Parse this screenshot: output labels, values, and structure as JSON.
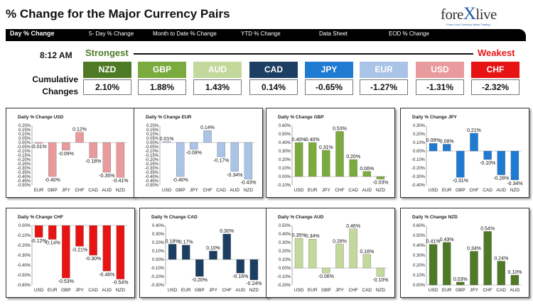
{
  "header": {
    "title": "% Change for the Major Currency Pairs",
    "logo": {
      "text_a": "fore",
      "text_x": "X",
      "text_b": "live",
      "tagline": "Forex Live Currency News Trading"
    }
  },
  "tabs": [
    {
      "label": "Day % Change",
      "active": true
    },
    {
      "label": "5- Day % Change",
      "active": false
    },
    {
      "label": "Month to Date % Change",
      "active": false
    },
    {
      "label": "YTD % Change",
      "active": false
    },
    {
      "label": "Data Sheet",
      "active": false
    },
    {
      "label": "EOD % Change",
      "active": false
    }
  ],
  "summary": {
    "time": "8:12 AM",
    "strongest_label": "Strongest",
    "weakest_label": "Weakest",
    "cumulative_label_1": "Cumulative",
    "cumulative_label_2": "Changes",
    "currencies": [
      {
        "name": "NZD",
        "value": "2.10%",
        "color": "#4e7a26"
      },
      {
        "name": "GBP",
        "value": "1.88%",
        "color": "#7bab3e"
      },
      {
        "name": "AUD",
        "value": "1.43%",
        "color": "#c3d89b"
      },
      {
        "name": "CAD",
        "value": "0.14%",
        "color": "#1d3e63"
      },
      {
        "name": "JPY",
        "value": "-0.65%",
        "color": "#1f7ad1"
      },
      {
        "name": "EUR",
        "value": "-1.27%",
        "color": "#a9c4e6"
      },
      {
        "name": "USD",
        "value": "-1.31%",
        "color": "#e89a9c"
      },
      {
        "name": "CHF",
        "value": "-2.32%",
        "color": "#e81313"
      }
    ]
  },
  "chart_data": [
    {
      "type": "bar",
      "title": "Daily % Change USD",
      "color": "#e89a9c",
      "categories": [
        "EUR",
        "GBP",
        "JPY",
        "CHF",
        "CAD",
        "AUD",
        "NZD"
      ],
      "values": [
        -0.01,
        -0.4,
        -0.09,
        0.12,
        -0.18,
        -0.35,
        -0.41
      ],
      "value_labels": [
        "-0.01%",
        "-0.40%",
        "-0.09%",
        "0.12%",
        "-0.18%",
        "-0.35%",
        "-0.41%"
      ],
      "ylim": [
        -0.5,
        0.2
      ],
      "yticks": [
        "0.20%",
        "0.15%",
        "0.10%",
        "0.05%",
        "0.00%",
        "-0.05%",
        "-0.10%",
        "-0.15%",
        "-0.20%",
        "-0.25%",
        "-0.30%",
        "-0.35%",
        "-0.40%",
        "-0.45%",
        "-0.50%"
      ],
      "ytick_values": [
        0.2,
        0.15,
        0.1,
        0.05,
        0,
        -0.05,
        -0.1,
        -0.15,
        -0.2,
        -0.25,
        -0.3,
        -0.35,
        -0.4,
        -0.45,
        -0.5
      ]
    },
    {
      "type": "bar",
      "title": "Daily % Change EUR",
      "color": "#a9c4e6",
      "categories": [
        "USD",
        "GBP",
        "JPY",
        "CHF",
        "CAD",
        "AUD",
        "NZD"
      ],
      "values": [
        0.01,
        -0.4,
        -0.08,
        0.14,
        -0.17,
        -0.34,
        -0.43
      ],
      "value_labels": [
        "0.01%",
        "-0.40%",
        "-0.08%",
        "0.14%",
        "-0.17%",
        "-0.34%",
        "-0.43%"
      ],
      "ylim": [
        -0.5,
        0.2
      ],
      "yticks": [
        "0.20%",
        "0.15%",
        "0.10%",
        "0.05%",
        "0.00%",
        "-0.05%",
        "-0.10%",
        "-0.15%",
        "-0.20%",
        "-0.25%",
        "-0.30%",
        "-0.35%",
        "-0.40%",
        "-0.45%",
        "-0.50%"
      ],
      "ytick_values": [
        0.2,
        0.15,
        0.1,
        0.05,
        0,
        -0.05,
        -0.1,
        -0.15,
        -0.2,
        -0.25,
        -0.3,
        -0.35,
        -0.4,
        -0.45,
        -0.5
      ]
    },
    {
      "type": "bar",
      "title": "Daily % Change GBP",
      "color": "#7bab3e",
      "categories": [
        "USD",
        "EUR",
        "JPY",
        "CHF",
        "CAD",
        "AUD",
        "NZD"
      ],
      "values": [
        0.4,
        0.4,
        0.31,
        0.53,
        0.2,
        0.06,
        -0.03
      ],
      "value_labels": [
        "0.40%",
        "0.40%",
        "0.31%",
        "0.53%",
        "0.20%",
        "0.06%",
        "-0.03%"
      ],
      "ylim": [
        -0.1,
        0.6
      ],
      "yticks": [
        "0.60%",
        "0.50%",
        "0.40%",
        "0.30%",
        "0.20%",
        "0.10%",
        "0.00%",
        "-0.10%"
      ],
      "ytick_values": [
        0.6,
        0.5,
        0.4,
        0.3,
        0.2,
        0.1,
        0,
        -0.1
      ]
    },
    {
      "type": "bar",
      "title": "Daily % Change JPY",
      "color": "#1f7ad1",
      "categories": [
        "USD",
        "EUR",
        "GBP",
        "CHF",
        "CAD",
        "AUD",
        "NZD"
      ],
      "values": [
        0.09,
        0.08,
        -0.31,
        0.21,
        -0.1,
        -0.28,
        -0.34
      ],
      "value_labels": [
        "0.09%",
        "0.08%",
        "-0.31%",
        "0.21%",
        "-0.10%",
        "-0.28%",
        "-0.34%"
      ],
      "ylim": [
        -0.4,
        0.3
      ],
      "yticks": [
        "0.30%",
        "0.20%",
        "0.10%",
        "0.00%",
        "-0.10%",
        "-0.20%",
        "-0.30%",
        "-0.40%"
      ],
      "ytick_values": [
        0.3,
        0.2,
        0.1,
        0,
        -0.1,
        -0.2,
        -0.3,
        -0.4
      ]
    },
    {
      "type": "bar",
      "title": "Daily % Change CHF",
      "color": "#e81313",
      "categories": [
        "USD",
        "EUR",
        "GBP",
        "JPY",
        "CAD",
        "AUD",
        "NZD"
      ],
      "values": [
        -0.12,
        -0.14,
        -0.53,
        -0.21,
        -0.3,
        -0.46,
        -0.54
      ],
      "value_labels": [
        "-0.12%",
        "-0.14%",
        "-0.53%",
        "-0.21%",
        "-0.30%",
        "-0.46%",
        "-0.54%"
      ],
      "ylim": [
        -0.6,
        0.0
      ],
      "yticks": [
        "0.00%",
        "-0.10%",
        "-0.20%",
        "-0.30%",
        "-0.40%",
        "-0.50%",
        "-0.60%"
      ],
      "ytick_values": [
        0,
        -0.1,
        -0.2,
        -0.3,
        -0.4,
        -0.5,
        -0.6
      ]
    },
    {
      "type": "bar",
      "title": "Daily % Change CAD",
      "color": "#1d3e63",
      "categories": [
        "USD",
        "EUR",
        "GBP",
        "JPY",
        "CHF",
        "AUD",
        "NZD"
      ],
      "values": [
        0.18,
        0.17,
        -0.2,
        0.1,
        0.3,
        -0.16,
        -0.24
      ],
      "value_labels": [
        "0.18%",
        "0.17%",
        "-0.20%",
        "0.10%",
        "0.30%",
        "-0.16%",
        "-0.24%"
      ],
      "ylim": [
        -0.3,
        0.4
      ],
      "yticks": [
        "0.40%",
        "0.30%",
        "0.20%",
        "0.10%",
        "0.00%",
        "-0.10%",
        "-0.20%",
        "-0.30%"
      ],
      "ytick_values": [
        0.4,
        0.3,
        0.2,
        0.1,
        0,
        -0.1,
        -0.2,
        -0.3
      ]
    },
    {
      "type": "bar",
      "title": "Daily % Change AUD",
      "color": "#c3d89b",
      "categories": [
        "USD",
        "EUR",
        "GBP",
        "JPY",
        "CHF",
        "CAD",
        "NZD"
      ],
      "values": [
        0.35,
        0.34,
        -0.06,
        0.28,
        0.46,
        0.16,
        -0.1
      ],
      "value_labels": [
        "0.35%",
        "0.34%",
        "-0.06%",
        "0.28%",
        "0.46%",
        "0.16%",
        "-0.10%"
      ],
      "ylim": [
        -0.2,
        0.5
      ],
      "yticks": [
        "0.50%",
        "0.40%",
        "0.30%",
        "0.20%",
        "0.10%",
        "0.00%",
        "-0.10%",
        "-0.20%"
      ],
      "ytick_values": [
        0.5,
        0.4,
        0.3,
        0.2,
        0.1,
        0,
        -0.1,
        -0.2
      ]
    },
    {
      "type": "bar",
      "title": "Daily % Change NZD",
      "color": "#4e7a26",
      "categories": [
        "USD",
        "EUR",
        "GBP",
        "JPY",
        "CHF",
        "CAD",
        "AUD"
      ],
      "values": [
        0.41,
        0.43,
        0.03,
        0.34,
        0.54,
        0.24,
        0.1
      ],
      "value_labels": [
        "0.41%",
        "0.43%",
        "0.03%",
        "0.34%",
        "0.54%",
        "0.24%",
        "0.10%"
      ],
      "ylim": [
        0.0,
        0.6
      ],
      "yticks": [
        "0.60%",
        "0.50%",
        "0.40%",
        "0.30%",
        "0.20%",
        "0.10%",
        "0.00%"
      ],
      "ytick_values": [
        0.6,
        0.5,
        0.4,
        0.3,
        0.2,
        0.1,
        0
      ]
    }
  ]
}
